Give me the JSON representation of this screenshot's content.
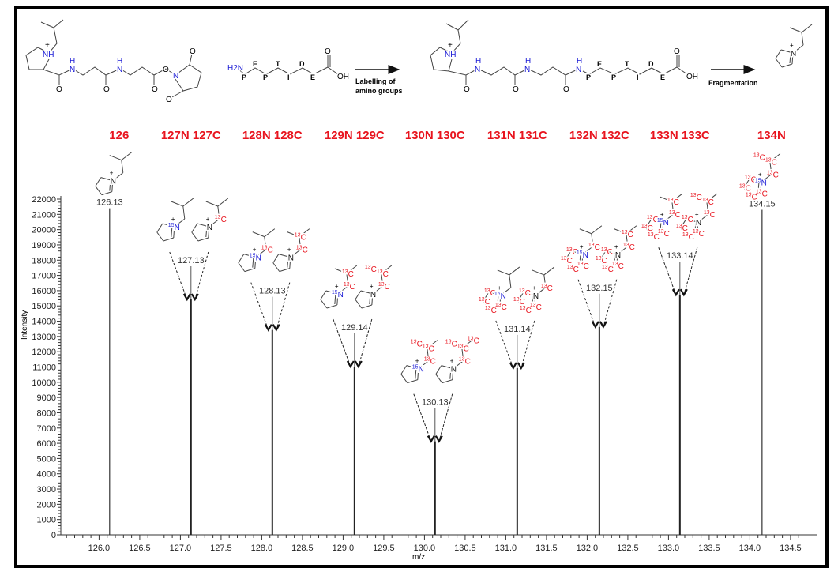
{
  "scheme": {
    "atoms": {
      "nh": "NH",
      "n": "N",
      "h": "H",
      "o": "O",
      "oh": "OH",
      "h2n": "H2N",
      "plus": "+"
    },
    "peptide": [
      "P",
      "E",
      "P",
      "T",
      "I",
      "D",
      "E"
    ],
    "arrow1_label_line1": "Labelling of",
    "arrow1_label_line2": "amino groups",
    "arrow2_label": "Fragmentation"
  },
  "isotopes": {
    "c13": "13",
    "n15": "15",
    "c": "C",
    "n": "N"
  },
  "reporters": [
    {
      "labels": [
        "126"
      ]
    },
    {
      "labels": [
        "127N",
        "127C"
      ]
    },
    {
      "labels": [
        "128N",
        "128C"
      ]
    },
    {
      "labels": [
        "129N",
        "129C"
      ]
    },
    {
      "labels": [
        "130N",
        "130C"
      ]
    },
    {
      "labels": [
        "131N",
        "131C"
      ]
    },
    {
      "labels": [
        "132N",
        "132C"
      ]
    },
    {
      "labels": [
        "133N",
        "133C"
      ]
    },
    {
      "labels": [
        "134N"
      ]
    }
  ],
  "fragments": [
    [
      {
        "n15": false,
        "ring13c": 0,
        "chain13c": 0
      }
    ],
    [
      {
        "n15": true,
        "ring13c": 0,
        "chain13c": 0
      },
      {
        "n15": false,
        "ring13c": 0,
        "chain13c": 1
      }
    ],
    [
      {
        "n15": true,
        "ring13c": 0,
        "chain13c": 1
      },
      {
        "n15": false,
        "ring13c": 0,
        "chain13c": 2
      }
    ],
    [
      {
        "n15": true,
        "ring13c": 0,
        "chain13c": 2
      },
      {
        "n15": false,
        "ring13c": 0,
        "chain13c": 3
      }
    ],
    [
      {
        "n15": true,
        "ring13c": 0,
        "chain13c": 3
      },
      {
        "n15": false,
        "ring13c": 0,
        "chain13c": 4
      }
    ],
    [
      {
        "n15": true,
        "ring13c": 4,
        "chain13c": 0
      },
      {
        "n15": false,
        "ring13c": 4,
        "chain13c": 1
      }
    ],
    [
      {
        "n15": true,
        "ring13c": 4,
        "chain13c": 1
      },
      {
        "n15": false,
        "ring13c": 4,
        "chain13c": 2
      }
    ],
    [
      {
        "n15": true,
        "ring13c": 4,
        "chain13c": 2
      },
      {
        "n15": false,
        "ring13c": 4,
        "chain13c": 3
      }
    ],
    [
      {
        "n15": true,
        "ring13c": 4,
        "chain13c": 3
      }
    ]
  ],
  "chart_data": {
    "type": "bar",
    "title": "",
    "xlabel": "m/z",
    "ylabel": "Intensity",
    "xlim": [
      125.53,
      134.64
    ],
    "ylim": [
      0,
      22000
    ],
    "xticks": [
      "126.0",
      "126.5",
      "127.0",
      "127.5",
      "128.0",
      "128.5",
      "129.0",
      "129.5",
      "130.0",
      "130.5",
      "131.0",
      "131.5",
      "132.0",
      "132.5",
      "133.0",
      "133.5",
      "134.0",
      "134.5"
    ],
    "yticks": [
      "0",
      "1000",
      "2000",
      "3000",
      "4000",
      "5000",
      "6000",
      "7000",
      "8000",
      "9000",
      "10000",
      "11000",
      "12000",
      "13000",
      "14000",
      "15000",
      "16000",
      "17000",
      "18000",
      "19000",
      "20000",
      "21000",
      "22000"
    ],
    "peaks": [
      {
        "mz": 126.13,
        "label": "126.13",
        "intensity": 21400
      },
      {
        "mz": 127.13,
        "label": "127.13",
        "intensity": 17600
      },
      {
        "mz": 128.13,
        "label": "128.13",
        "intensity": 15600
      },
      {
        "mz": 129.14,
        "label": "129.14",
        "intensity": 13200
      },
      {
        "mz": 130.13,
        "label": "130.13",
        "intensity": 8300
      },
      {
        "mz": 131.14,
        "label": "131.14",
        "intensity": 13100
      },
      {
        "mz": 132.15,
        "label": "132.15",
        "intensity": 15800
      },
      {
        "mz": 133.14,
        "label": "133.14",
        "intensity": 17900
      },
      {
        "mz": 134.15,
        "label": "134.15",
        "intensity": 21300
      }
    ],
    "grid": false,
    "colors": {
      "reporter": "#e8141e",
      "c13": "#e8141e",
      "n15": "#1a1ad6",
      "line": "#333333"
    }
  }
}
